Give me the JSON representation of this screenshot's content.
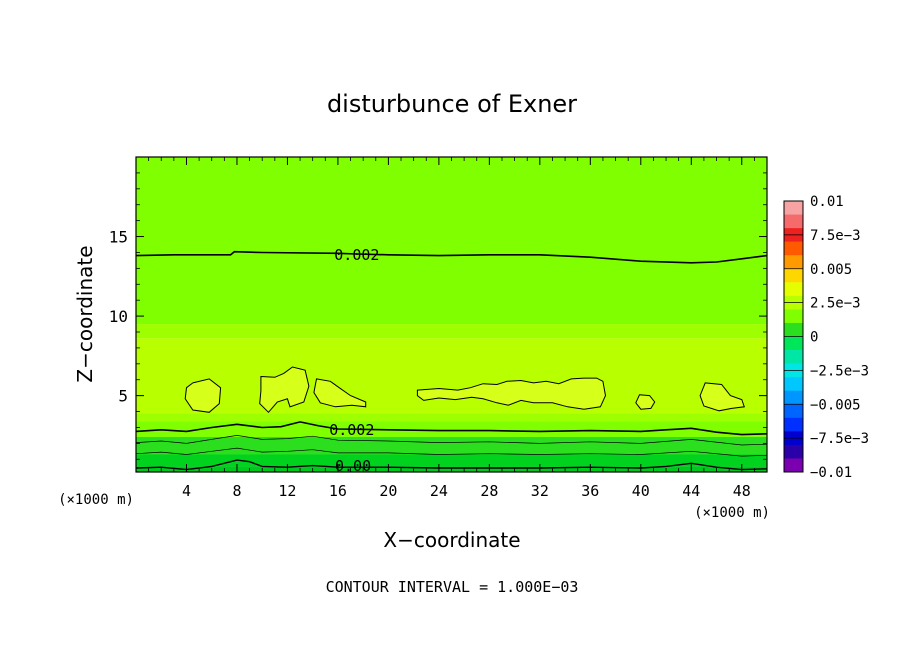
{
  "chart_data": {
    "type": "heatmap",
    "title": "disturbunce of Exner",
    "xlabel": "X−coordinate",
    "ylabel": "Z−coordinate",
    "x_unit": "(×1000 m)",
    "y_unit": "(×1000 m)",
    "xlim": [
      0,
      50
    ],
    "ylim": [
      0.2,
      20
    ],
    "x_ticks": [
      4,
      8,
      12,
      16,
      20,
      24,
      28,
      32,
      36,
      40,
      44,
      48
    ],
    "y_ticks": [
      5,
      10,
      15
    ],
    "footer": "CONTOUR INTERVAL = 1.000E−03",
    "grid": false,
    "contour_labels": [
      {
        "text": "0.002",
        "x": 17.5,
        "y": 13.9
      },
      {
        "text": "0.002",
        "x": 17.1,
        "y": 2.9
      },
      {
        "text": "0.00",
        "x": 17.2,
        "y": 0.65
      }
    ],
    "colorbar": {
      "labels": [
        "0.01",
        "7.5e−3",
        "0.005",
        "2.5e−3",
        "0",
        "−2.5e−3",
        "−0.005",
        "−7.5e−3",
        "−0.01"
      ],
      "colors": [
        "#f7a3a3",
        "#f56b6b",
        "#ee2121",
        "#ff5a00",
        "#ff9a00",
        "#ffd700",
        "#e6ff00",
        "#b8ff00",
        "#7fff00",
        "#2bdf1f",
        "#00e65a",
        "#00e6a5",
        "#00e6e6",
        "#00c8ff",
        "#0096ff",
        "#0064ff",
        "#0030ff",
        "#0000d0",
        "#2a00a8",
        "#7a00b0"
      ]
    },
    "bands": [
      {
        "ztop": 20,
        "color": "#7fff00"
      },
      {
        "ztop": 9.5,
        "color": "#9eff00"
      },
      {
        "ztop": 8.6,
        "color": "#b8ff00"
      },
      {
        "ztop": 3.9,
        "color": "#9eff00"
      },
      {
        "ztop": 3.4,
        "color": "#7fff00"
      },
      {
        "ztop": 2.4,
        "color": "#2bdf1f"
      },
      {
        "ztop": 1.3,
        "color": "#00d21e"
      },
      {
        "ztop": 0.55,
        "color": "#00c81e"
      }
    ],
    "contour_lines": [
      {
        "width": 1.6,
        "points": [
          [
            0,
            13.8
          ],
          [
            3,
            13.85
          ],
          [
            5.5,
            13.85
          ],
          [
            7.5,
            13.85
          ],
          [
            7.8,
            14.05
          ],
          [
            10,
            14
          ],
          [
            16,
            13.95
          ],
          [
            17.5,
            13.9
          ],
          [
            20,
            13.85
          ],
          [
            24,
            13.8
          ],
          [
            28,
            13.85
          ],
          [
            32,
            13.85
          ],
          [
            36,
            13.7
          ],
          [
            40,
            13.45
          ],
          [
            44,
            13.35
          ],
          [
            46,
            13.4
          ],
          [
            48,
            13.6
          ],
          [
            50,
            13.8
          ]
        ]
      },
      {
        "width": 1.6,
        "points": [
          [
            0,
            2.75
          ],
          [
            2,
            2.85
          ],
          [
            4,
            2.75
          ],
          [
            6,
            3.0
          ],
          [
            8,
            3.2
          ],
          [
            10,
            3.0
          ],
          [
            11.5,
            3.05
          ],
          [
            13,
            3.35
          ],
          [
            14.5,
            3.1
          ],
          [
            16,
            2.9
          ],
          [
            20,
            2.85
          ],
          [
            24,
            2.8
          ],
          [
            28,
            2.8
          ],
          [
            32,
            2.75
          ],
          [
            36,
            2.8
          ],
          [
            40,
            2.75
          ],
          [
            42,
            2.85
          ],
          [
            44,
            2.95
          ],
          [
            46,
            2.7
          ],
          [
            48,
            2.55
          ],
          [
            50,
            2.6
          ]
        ]
      },
      {
        "width": 0.7,
        "points": [
          [
            0,
            2.05
          ],
          [
            2,
            2.15
          ],
          [
            4,
            2.0
          ],
          [
            6,
            2.25
          ],
          [
            8,
            2.5
          ],
          [
            10,
            2.25
          ],
          [
            12,
            2.3
          ],
          [
            14,
            2.45
          ],
          [
            16,
            2.2
          ],
          [
            20,
            2.15
          ],
          [
            24,
            2.05
          ],
          [
            28,
            2.1
          ],
          [
            32,
            2.0
          ],
          [
            36,
            2.1
          ],
          [
            40,
            2.0
          ],
          [
            44,
            2.25
          ],
          [
            48,
            1.9
          ],
          [
            50,
            1.95
          ]
        ]
      },
      {
        "width": 0.7,
        "points": [
          [
            0,
            1.35
          ],
          [
            2,
            1.45
          ],
          [
            4,
            1.3
          ],
          [
            6,
            1.5
          ],
          [
            8,
            1.7
          ],
          [
            10,
            1.45
          ],
          [
            12,
            1.5
          ],
          [
            14,
            1.6
          ],
          [
            16,
            1.4
          ],
          [
            20,
            1.4
          ],
          [
            24,
            1.3
          ],
          [
            28,
            1.35
          ],
          [
            32,
            1.3
          ],
          [
            36,
            1.35
          ],
          [
            40,
            1.3
          ],
          [
            44,
            1.5
          ],
          [
            48,
            1.2
          ],
          [
            50,
            1.25
          ]
        ]
      },
      {
        "width": 1.4,
        "points": [
          [
            0,
            0.45
          ],
          [
            2,
            0.5
          ],
          [
            4,
            0.35
          ],
          [
            6,
            0.55
          ],
          [
            8,
            0.95
          ],
          [
            9,
            0.85
          ],
          [
            10,
            0.55
          ],
          [
            12,
            0.5
          ],
          [
            14,
            0.6
          ],
          [
            16,
            0.5
          ],
          [
            20,
            0.5
          ],
          [
            24,
            0.45
          ],
          [
            28,
            0.45
          ],
          [
            32,
            0.45
          ],
          [
            36,
            0.5
          ],
          [
            40,
            0.45
          ],
          [
            42,
            0.55
          ],
          [
            44,
            0.75
          ],
          [
            46,
            0.5
          ],
          [
            48,
            0.35
          ],
          [
            50,
            0.4
          ]
        ]
      }
    ],
    "blobs": [
      {
        "points": [
          [
            4.5,
            5.8
          ],
          [
            5.8,
            6.05
          ],
          [
            6.7,
            5.5
          ],
          [
            6.6,
            4.5
          ],
          [
            5.8,
            3.95
          ],
          [
            4.5,
            4.1
          ],
          [
            3.9,
            4.8
          ],
          [
            4.0,
            5.5
          ]
        ]
      },
      {
        "points": [
          [
            9.9,
            6.2
          ],
          [
            11.0,
            6.15
          ],
          [
            11.7,
            6.4
          ],
          [
            12.4,
            6.8
          ],
          [
            13.4,
            6.6
          ],
          [
            13.7,
            5.6
          ],
          [
            13.3,
            4.6
          ],
          [
            12.2,
            4.3
          ],
          [
            12.0,
            4.8
          ],
          [
            11.2,
            4.6
          ],
          [
            10.5,
            3.95
          ],
          [
            9.8,
            4.5
          ],
          [
            9.9,
            5.3
          ]
        ]
      },
      {
        "points": [
          [
            14.3,
            6.05
          ],
          [
            15.4,
            5.9
          ],
          [
            16.1,
            5.5
          ],
          [
            17.0,
            5.0
          ],
          [
            18.2,
            4.6
          ],
          [
            18.2,
            4.3
          ],
          [
            17.1,
            4.4
          ],
          [
            15.8,
            4.3
          ],
          [
            14.6,
            4.55
          ],
          [
            14.1,
            5.2
          ]
        ]
      },
      {
        "points": [
          [
            22.3,
            5.35
          ],
          [
            24,
            5.45
          ],
          [
            25.5,
            5.35
          ],
          [
            26.5,
            5.5
          ],
          [
            27.5,
            5.75
          ],
          [
            28.6,
            5.7
          ],
          [
            29.4,
            5.9
          ],
          [
            30.5,
            5.95
          ],
          [
            31.5,
            5.8
          ],
          [
            32.5,
            5.9
          ],
          [
            33.5,
            5.75
          ],
          [
            34.5,
            6.05
          ],
          [
            35.5,
            6.1
          ],
          [
            36.5,
            6.1
          ],
          [
            37.0,
            5.9
          ],
          [
            37.2,
            5.0
          ],
          [
            36.8,
            4.3
          ],
          [
            35.5,
            4.15
          ],
          [
            34.2,
            4.3
          ],
          [
            33.0,
            4.55
          ],
          [
            31.5,
            4.55
          ],
          [
            30.5,
            4.7
          ],
          [
            29.5,
            4.4
          ],
          [
            28.6,
            4.55
          ],
          [
            27.5,
            4.8
          ],
          [
            26.6,
            4.9
          ],
          [
            25.3,
            4.75
          ],
          [
            24,
            4.85
          ],
          [
            22.8,
            4.7
          ],
          [
            22.3,
            5.0
          ]
        ]
      },
      {
        "points": [
          [
            39.9,
            5.05
          ],
          [
            40.7,
            5.0
          ],
          [
            41.1,
            4.6
          ],
          [
            40.8,
            4.2
          ],
          [
            40.0,
            4.15
          ],
          [
            39.6,
            4.55
          ]
        ]
      },
      {
        "points": [
          [
            45.1,
            5.8
          ],
          [
            46.4,
            5.7
          ],
          [
            47.1,
            5.0
          ],
          [
            48.0,
            4.75
          ],
          [
            48.2,
            4.3
          ],
          [
            47.2,
            4.2
          ],
          [
            46.2,
            4.05
          ],
          [
            45.0,
            4.35
          ],
          [
            44.7,
            5.0
          ]
        ]
      }
    ]
  }
}
